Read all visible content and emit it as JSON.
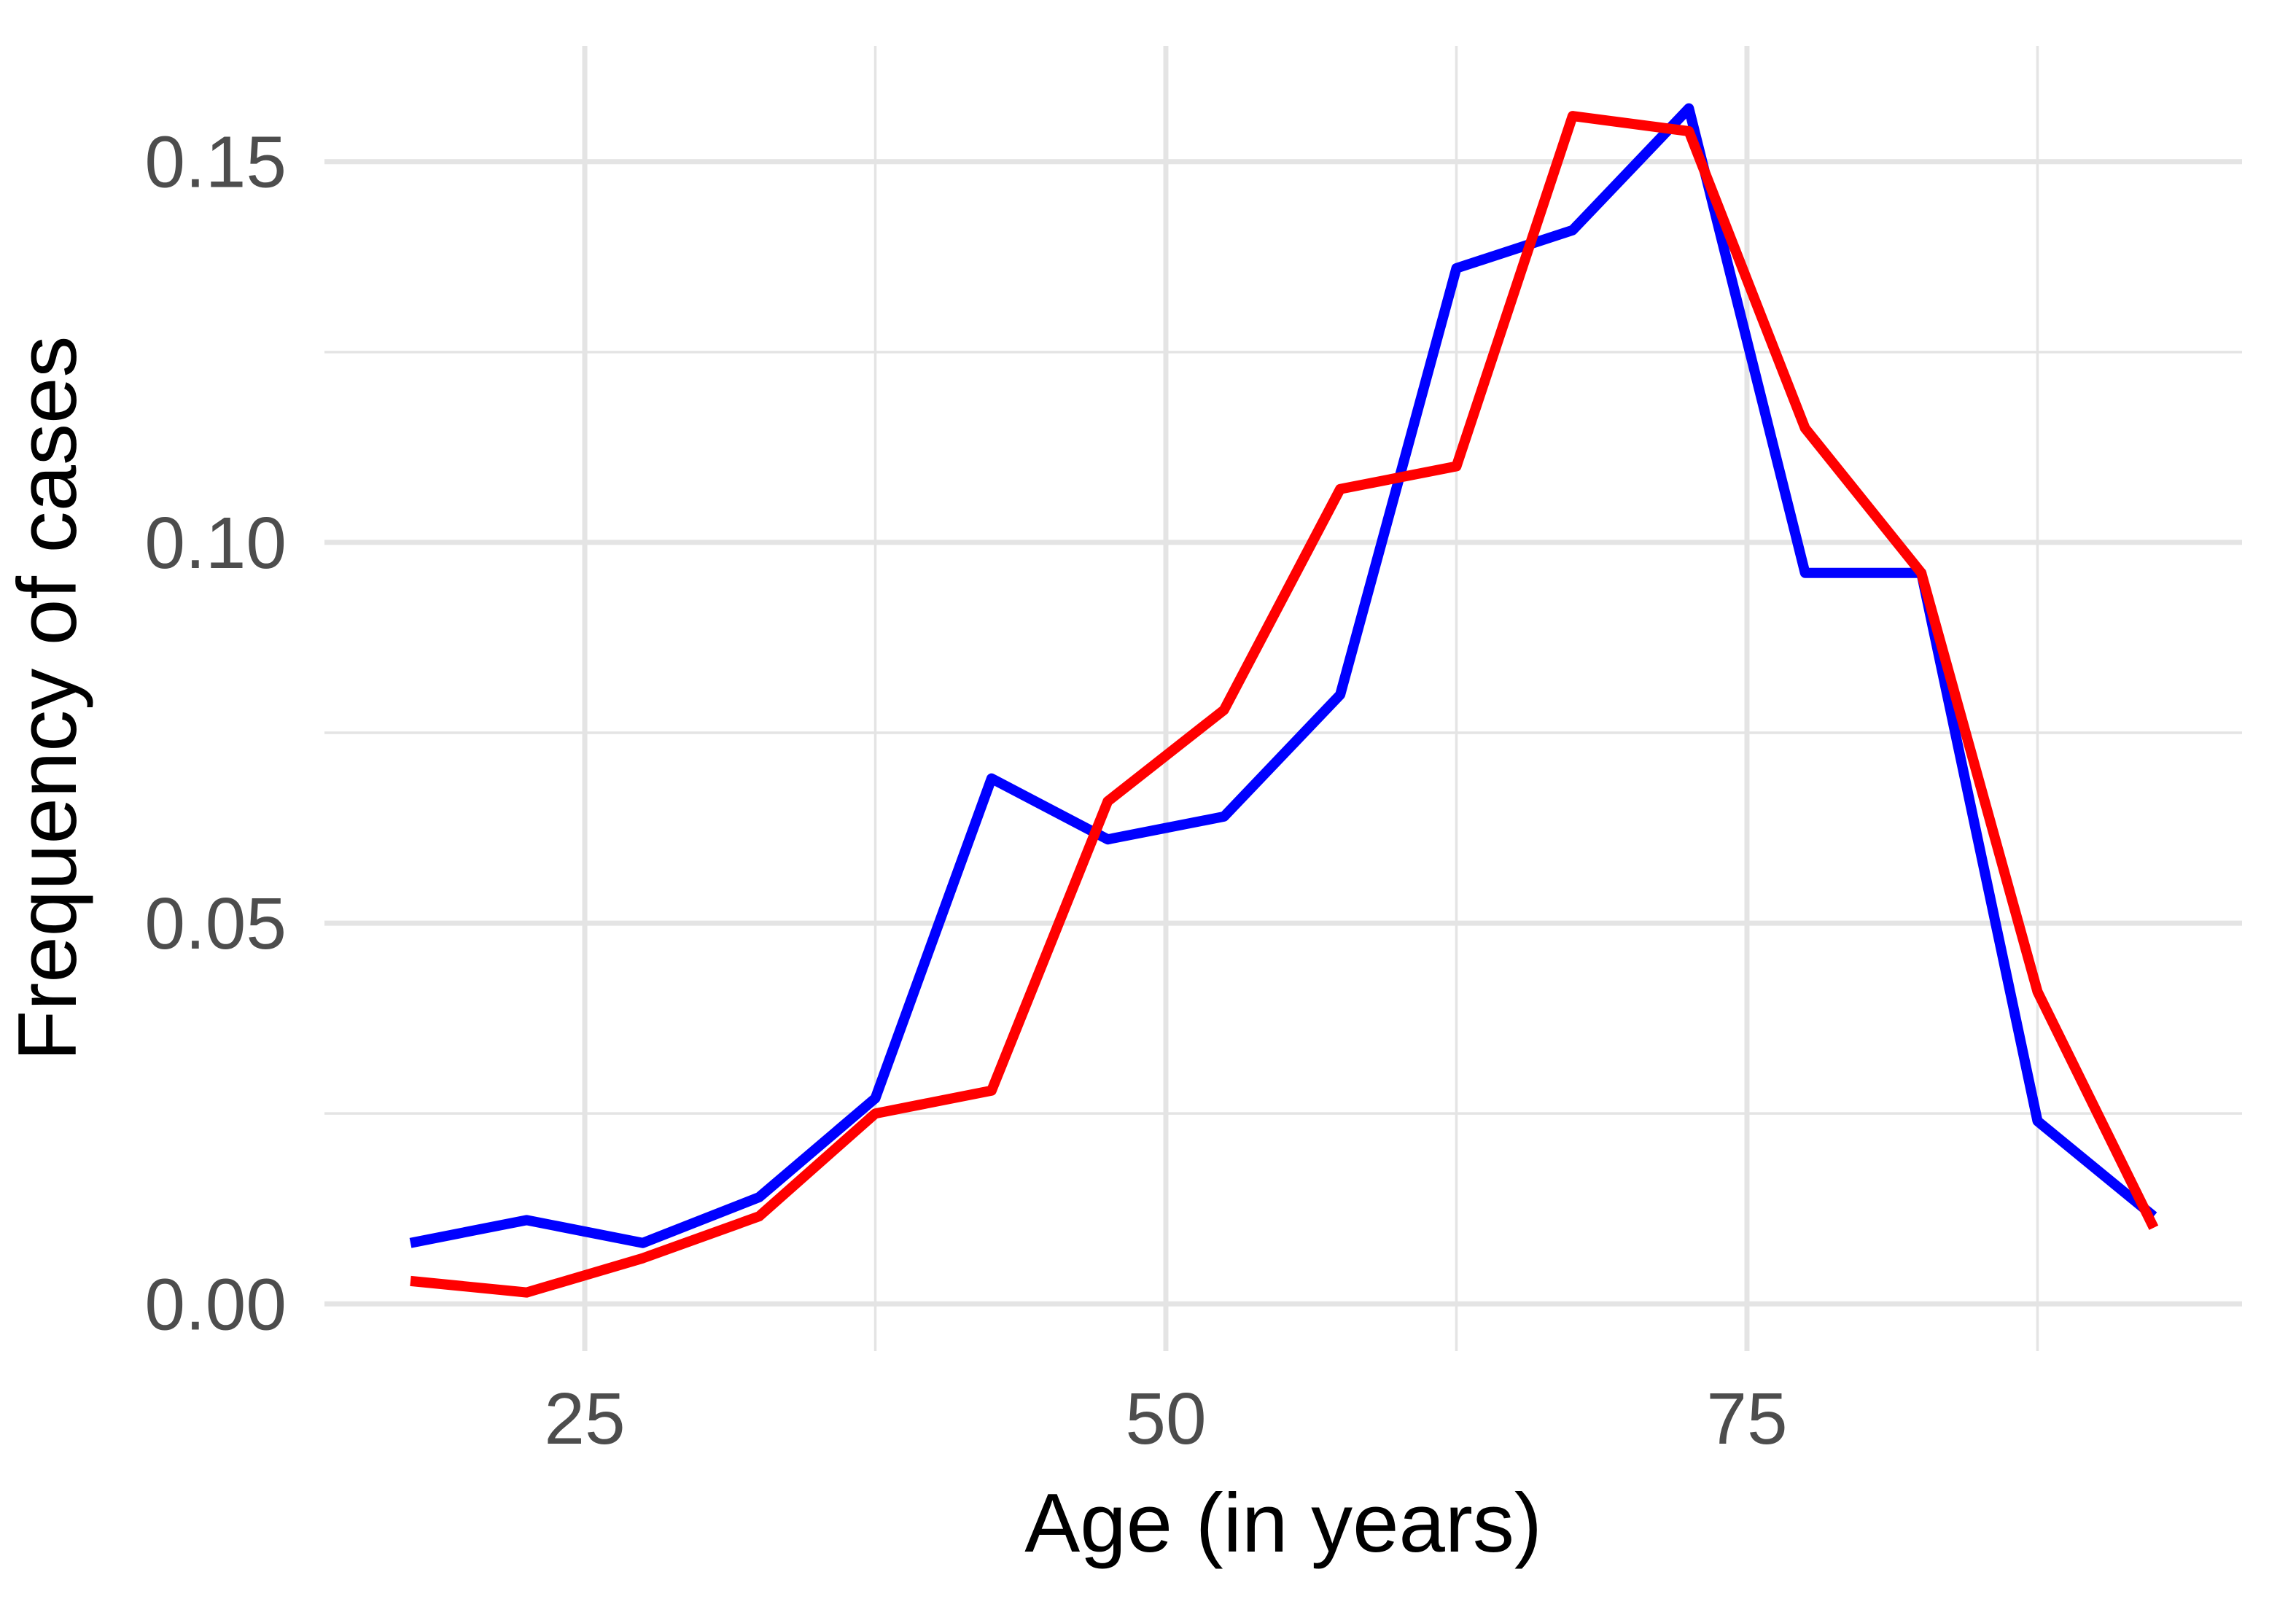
{
  "chart_data": {
    "type": "line",
    "title": "",
    "xlabel": "Age (in years)",
    "ylabel": "Frequency of cases",
    "x": [
      17.5,
      22.5,
      27.5,
      32.5,
      37.5,
      42.5,
      47.5,
      52.5,
      57.5,
      62.5,
      67.5,
      72.5,
      77.5,
      82.5,
      87.5,
      92.5
    ],
    "series": [
      {
        "name": "blue",
        "color": "#0000ff",
        "values": [
          0.008,
          0.011,
          0.008,
          0.014,
          0.027,
          0.069,
          0.061,
          0.064,
          0.08,
          0.136,
          0.141,
          0.157,
          0.096,
          0.096,
          0.024,
          0.0115
        ]
      },
      {
        "name": "red",
        "color": "#ff0000",
        "values": [
          0.003,
          0.0015,
          0.006,
          0.0115,
          0.025,
          0.028,
          0.066,
          0.078,
          0.107,
          0.11,
          0.156,
          0.154,
          0.115,
          0.096,
          0.041,
          0.01
        ]
      }
    ],
    "x_ticks": {
      "labels": [
        "25",
        "50",
        "75"
      ],
      "major": [
        25,
        50,
        75
      ],
      "minor": [
        37.5,
        62.5,
        87.5
      ]
    },
    "y_ticks": {
      "labels": [
        "0.00",
        "0.05",
        "0.10",
        "0.15"
      ],
      "major": [
        0,
        0.05,
        0.1,
        0.15
      ],
      "minor": [
        0.025,
        0.075,
        0.125
      ]
    },
    "xlim": [
      13.8,
      96.3
    ],
    "ylim": [
      -0.0062,
      0.1652
    ],
    "grid": "on",
    "legend": "none",
    "background_color": "#ffffff",
    "grid_color": "#e4e4e4",
    "tick_label_color": "#4d4d4d",
    "axis_title_color": "#000000"
  }
}
